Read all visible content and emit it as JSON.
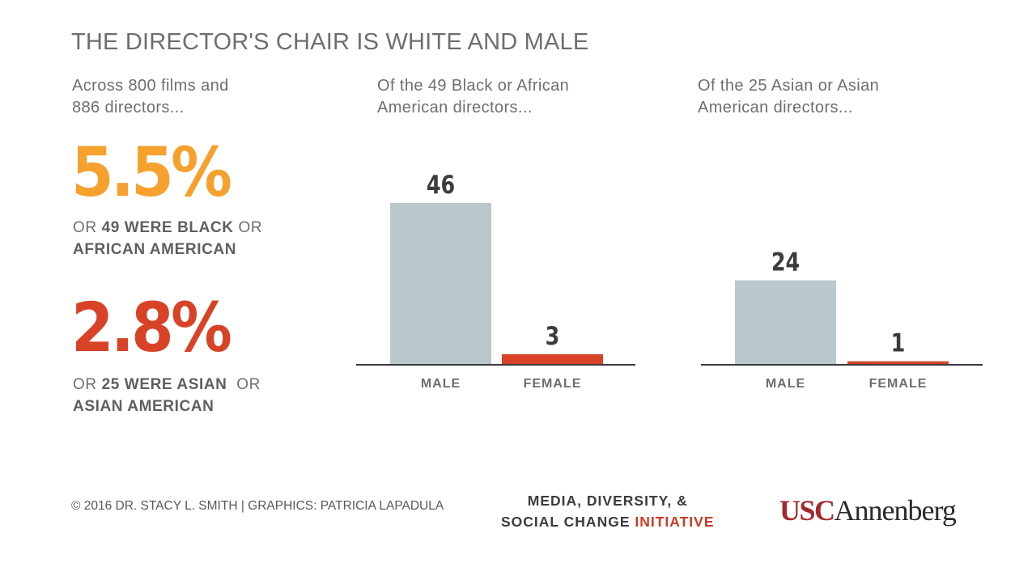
{
  "title": "THE DIRECTOR'S CHAIR IS WHITE AND MALE",
  "left_panel": {
    "intro": [
      "Across 800 films and",
      "886 directors..."
    ],
    "stat1": {
      "pct": "5.5%",
      "line1_pre": "OR ",
      "line1_bold": "49 WERE BLACK",
      "line1_post": " OR",
      "line2_bold": "AFRICAN AMERICAN",
      "color": "#f6a12e"
    },
    "stat2": {
      "pct": "2.8%",
      "line1_pre": "OR ",
      "line1_bold": "25 WERE ASIAN",
      "line1_post": "  OR",
      "line2_bold": "ASIAN AMERICAN",
      "color": "#d84327"
    }
  },
  "chart_data": [
    {
      "type": "bar",
      "title": "Of the 49 Black or African American directors...",
      "title_lines": [
        "Of the 49 Black or African",
        "American directors..."
      ],
      "categories": [
        "MALE",
        "FEMALE"
      ],
      "values": [
        46,
        3
      ],
      "colors": [
        "#bac7cb",
        "#d84327"
      ],
      "ylim": [
        0,
        46
      ]
    },
    {
      "type": "bar",
      "title": "Of the 25 Asian or Asian American directors...",
      "title_lines": [
        "Of the 25 Asian or Asian",
        "American directors..."
      ],
      "categories": [
        "MALE",
        "FEMALE"
      ],
      "values": [
        24,
        1
      ],
      "colors": [
        "#bac7cb",
        "#d84327"
      ],
      "ylim": [
        0,
        46
      ]
    }
  ],
  "footer": {
    "credit": "© 2016 DR. STACY L. SMITH | GRAPHICS: PATRICIA LAPADULA",
    "initiative_line1": "MEDIA, DIVERSITY, &",
    "initiative_line2_a": "SOCIAL CHANGE ",
    "initiative_line2_b": "INITIATIVE",
    "logo_usc": "USC",
    "logo_annenberg": "Annenberg"
  }
}
